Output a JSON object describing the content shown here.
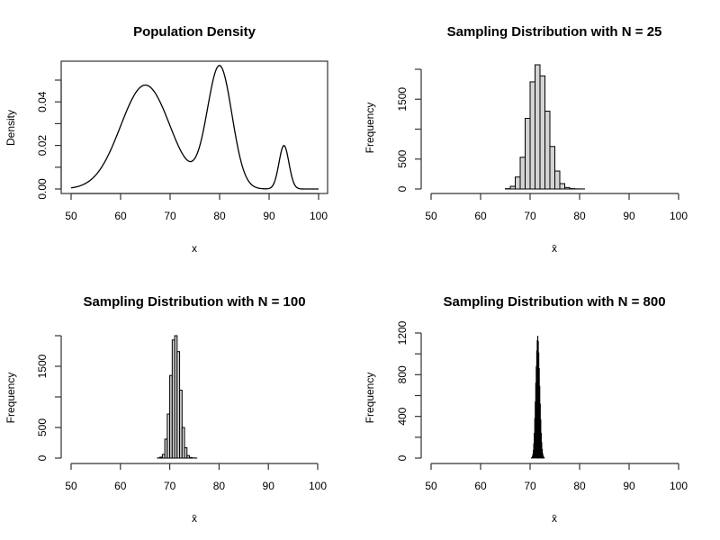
{
  "chart_data": [
    {
      "id": "population",
      "type": "line",
      "title": "Population Density",
      "xlabel": "x",
      "ylabel": "Density",
      "xlim": [
        50,
        100
      ],
      "ylim": [
        0,
        0.0575
      ],
      "xticks": [
        50,
        60,
        70,
        80,
        90,
        100
      ],
      "yticks": [
        0,
        0.01,
        0.02,
        0.03,
        0.04,
        0.05
      ],
      "ytick_labels": [
        "0.00",
        "",
        "0.02",
        "",
        "0.04",
        ""
      ],
      "boxed": true,
      "components": [
        {
          "mean": 65,
          "sd": 5,
          "height": 0.0477
        },
        {
          "mean": 80,
          "sd": 2.5,
          "height": 0.0562
        },
        {
          "mean": 93,
          "sd": 1.0,
          "height": 0.02
        }
      ],
      "x": [
        50,
        52,
        54,
        56,
        58,
        60,
        62,
        64,
        65,
        66,
        68,
        70,
        72,
        74,
        76,
        78,
        80,
        82,
        84,
        86,
        88,
        90,
        91,
        92,
        93,
        94,
        95,
        96,
        98,
        100
      ],
      "y": [
        0.0006,
        0.002,
        0.005,
        0.011,
        0.02,
        0.03,
        0.04,
        0.0467,
        0.0477,
        0.047,
        0.042,
        0.032,
        0.02,
        0.0128,
        0.022,
        0.045,
        0.0562,
        0.044,
        0.018,
        0.004,
        0.0005,
        0.0003,
        0.003,
        0.012,
        0.02,
        0.012,
        0.003,
        0.0003,
        0.0,
        0.0
      ]
    },
    {
      "id": "n25",
      "type": "bar",
      "title": "Sampling Distribution with N = 25",
      "xlabel": "x̄",
      "ylabel": "Frequency",
      "xlim": [
        50,
        100
      ],
      "ylim": [
        0,
        2100
      ],
      "xticks": [
        50,
        60,
        70,
        80,
        90,
        100
      ],
      "yticks": [
        0,
        500,
        1000,
        1500,
        2000
      ],
      "ytick_labels": [
        "0",
        "500",
        "",
        "1500",
        ""
      ],
      "bin_width": 1,
      "bin_start": 65,
      "values": [
        5,
        45,
        200,
        530,
        1180,
        1790,
        2075,
        1890,
        1300,
        710,
        300,
        90,
        25,
        6,
        2,
        1
      ],
      "fill": "#d3d3d3"
    },
    {
      "id": "n100",
      "type": "bar",
      "title": "Sampling Distribution with N = 100",
      "xlabel": "x̄",
      "ylabel": "Frequency",
      "xlim": [
        50,
        100
      ],
      "ylim": [
        0,
        2100
      ],
      "xticks": [
        50,
        60,
        70,
        80,
        90,
        100
      ],
      "yticks": [
        0,
        500,
        1000,
        1500,
        2000
      ],
      "ytick_labels": [
        "0",
        "500",
        "",
        "1500",
        ""
      ],
      "bin_width": 0.5,
      "bin_start": 67.5,
      "values": [
        3,
        15,
        60,
        310,
        720,
        1350,
        1930,
        2000,
        1740,
        1110,
        500,
        170,
        40,
        10,
        3,
        1
      ],
      "fill": "#d3d3d3"
    },
    {
      "id": "n800",
      "type": "bar",
      "title": "Sampling Distribution with N = 800",
      "xlabel": "x̄",
      "ylabel": "Frequency",
      "xlim": [
        50,
        100
      ],
      "ylim": [
        0,
        1250
      ],
      "xticks": [
        50,
        60,
        70,
        80,
        90,
        100
      ],
      "yticks": [
        0,
        200,
        400,
        600,
        800,
        1000,
        1200
      ],
      "ytick_labels": [
        "0",
        "",
        "400",
        "",
        "800",
        "",
        "1200"
      ],
      "bin_width": 0.1,
      "bin_start": 70.2,
      "values": [
        2,
        6,
        15,
        35,
        75,
        140,
        240,
        380,
        540,
        720,
        880,
        1030,
        1130,
        1170,
        1120,
        1010,
        860,
        690,
        520,
        370,
        240,
        150,
        85,
        45,
        22,
        10,
        4
      ],
      "fill": "#000000"
    }
  ]
}
